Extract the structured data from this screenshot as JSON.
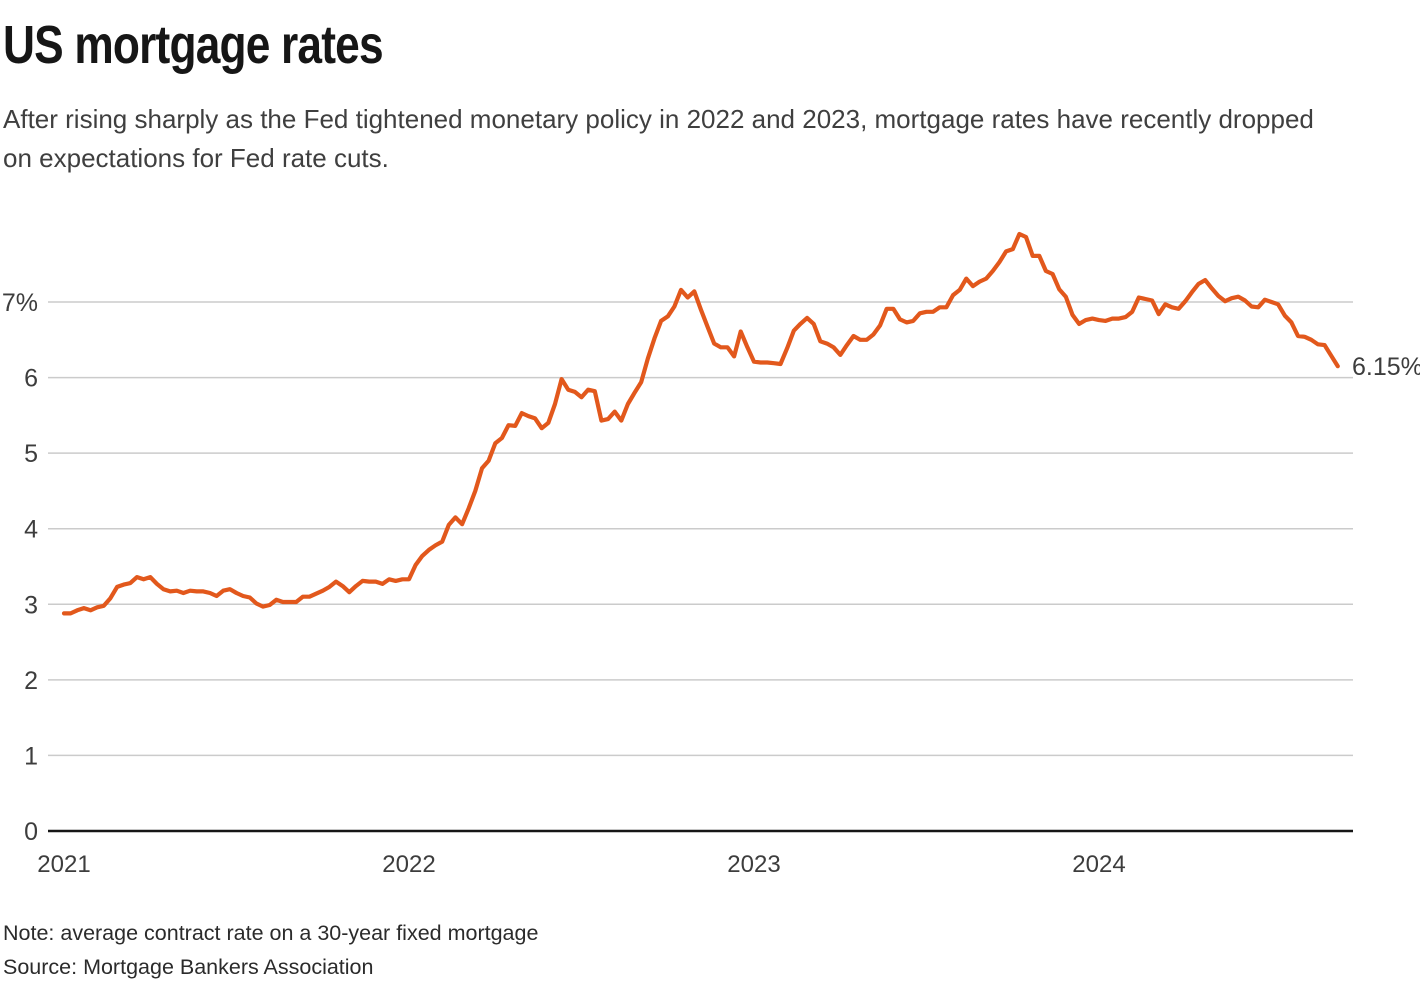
{
  "header": {
    "title": "US mortgage rates",
    "subtitle": "After rising sharply as the Fed tightened monetary policy in 2022 and 2023, mortgage rates have recently dropped on expectations for Fed rate cuts."
  },
  "footer": {
    "note": "Note: average contract rate on a 30-year fixed mortgage",
    "source": "Source: Mortgage Bankers Association"
  },
  "chart_data": {
    "type": "line",
    "title": "US mortgage rates",
    "xlabel": "",
    "ylabel": "",
    "ylim": [
      0,
      8
    ],
    "grid": "horizontal",
    "frequency": "weekly",
    "x_tick_labels": [
      "2021",
      "2022",
      "2023",
      "2024"
    ],
    "points_per_year": 52,
    "y_ticks": [
      {
        "value": 0,
        "label": "0"
      },
      {
        "value": 1,
        "label": "1"
      },
      {
        "value": 2,
        "label": "2"
      },
      {
        "value": 3,
        "label": "3"
      },
      {
        "value": 4,
        "label": "4"
      },
      {
        "value": 5,
        "label": "5"
      },
      {
        "value": 6,
        "label": "6"
      },
      {
        "value": 7,
        "label": "7%"
      }
    ],
    "end_label": "6.15%",
    "colors": {
      "line": "#e2581c",
      "grid": "#cbcbcb",
      "axis": "#161616",
      "tick_label": "#3d3d3d"
    },
    "series": [
      {
        "name": "30-year fixed mortgage average contract rate",
        "color": "#e2581c",
        "values": [
          2.88,
          2.88,
          2.92,
          2.95,
          2.92,
          2.96,
          2.98,
          3.08,
          3.23,
          3.26,
          3.28,
          3.36,
          3.33,
          3.36,
          3.27,
          3.2,
          3.17,
          3.18,
          3.15,
          3.18,
          3.17,
          3.17,
          3.15,
          3.11,
          3.18,
          3.2,
          3.15,
          3.11,
          3.09,
          3.01,
          2.97,
          2.99,
          3.06,
          3.03,
          3.03,
          3.03,
          3.1,
          3.1,
          3.14,
          3.18,
          3.23,
          3.3,
          3.24,
          3.16,
          3.24,
          3.31,
          3.3,
          3.3,
          3.27,
          3.33,
          3.31,
          3.33,
          3.33,
          3.52,
          3.64,
          3.72,
          3.78,
          3.83,
          4.05,
          4.15,
          4.06,
          4.27,
          4.5,
          4.8,
          4.9,
          5.13,
          5.2,
          5.37,
          5.36,
          5.53,
          5.49,
          5.46,
          5.33,
          5.4,
          5.65,
          5.98,
          5.84,
          5.81,
          5.74,
          5.84,
          5.82,
          5.43,
          5.45,
          5.55,
          5.43,
          5.65,
          5.8,
          5.94,
          6.25,
          6.52,
          6.75,
          6.81,
          6.94,
          7.16,
          7.06,
          7.14,
          6.9,
          6.67,
          6.45,
          6.4,
          6.4,
          6.28,
          6.61,
          6.4,
          6.21,
          6.2,
          6.2,
          6.19,
          6.18,
          6.39,
          6.62,
          6.71,
          6.79,
          6.71,
          6.48,
          6.45,
          6.4,
          6.3,
          6.43,
          6.55,
          6.5,
          6.5,
          6.57,
          6.69,
          6.91,
          6.91,
          6.77,
          6.73,
          6.75,
          6.85,
          6.87,
          6.87,
          6.93,
          6.93,
          7.09,
          7.16,
          7.31,
          7.21,
          7.27,
          7.31,
          7.41,
          7.53,
          7.67,
          7.7,
          7.9,
          7.86,
          7.61,
          7.61,
          7.41,
          7.37,
          7.17,
          7.07,
          6.83,
          6.71,
          6.76,
          6.78,
          6.76,
          6.75,
          6.78,
          6.78,
          6.8,
          6.87,
          7.06,
          7.04,
          7.02,
          6.84,
          6.97,
          6.93,
          6.91,
          7.01,
          7.13,
          7.24,
          7.29,
          7.18,
          7.08,
          7.01,
          7.05,
          7.07,
          7.02,
          6.94,
          6.93,
          7.03,
          7.0,
          6.97,
          6.82,
          6.73,
          6.55,
          6.54,
          6.5,
          6.44,
          6.43,
          6.29,
          6.15
        ]
      }
    ]
  }
}
